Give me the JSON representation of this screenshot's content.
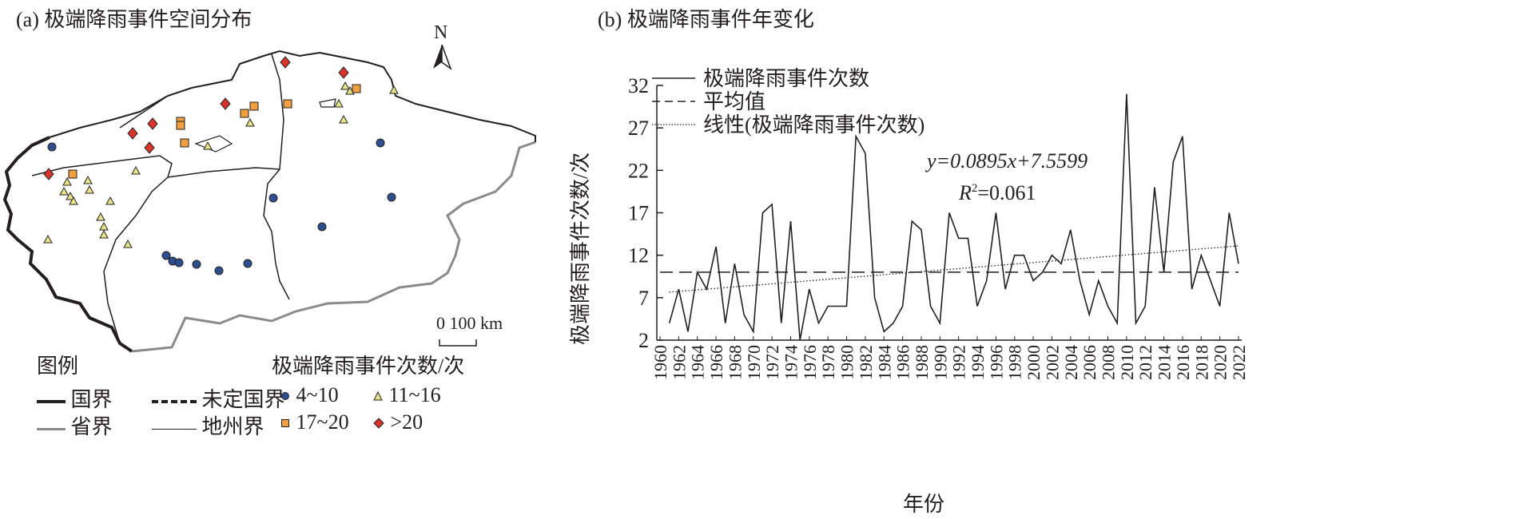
{
  "map_panel": {
    "title": "(a) 极端降雨事件空间分布",
    "north_label": "N",
    "scale_label": "0 100 km",
    "legend": {
      "title": "图例",
      "lines": [
        {
          "label": "国界",
          "style": "solid-thick"
        },
        {
          "label": "未定国界",
          "style": "dashed"
        },
        {
          "label": "省界",
          "style": "gray"
        },
        {
          "label": "地州界",
          "style": "thin"
        }
      ],
      "points_title": "极端降雨事件次数/次",
      "points": [
        {
          "label": "4~10",
          "shape": "circle",
          "color": "#2e4f8f"
        },
        {
          "label": "11~16",
          "shape": "triangle",
          "color": "#e8e48a"
        },
        {
          "label": "17~20",
          "shape": "square",
          "color": "#f0a040"
        },
        {
          "label": ">20",
          "shape": "diamond",
          "color": "#d9342b"
        }
      ]
    }
  },
  "chart_data": {
    "type": "line",
    "title": "(b) 极端降雨事件年变化",
    "xlabel": "年份",
    "ylabel": "极端降雨事件次数/次",
    "ylim": [
      2,
      32
    ],
    "yticks": [
      "2",
      "7",
      "12",
      "17",
      "22",
      "27",
      "32"
    ],
    "xticks": [
      "1960",
      "1962",
      "1964",
      "1966",
      "1968",
      "1970",
      "1972",
      "1974",
      "1976",
      "1978",
      "1980",
      "1982",
      "1984",
      "1986",
      "1988",
      "1990",
      "1992",
      "1994",
      "1996",
      "1998",
      "2000",
      "2002",
      "2004",
      "2006",
      "2008",
      "2010",
      "2012",
      "2014",
      "2016",
      "2018",
      "2020",
      "2022"
    ],
    "xlim": [
      1960,
      2022
    ],
    "series": [
      {
        "name": "极端降雨事件次数",
        "style": "solid",
        "x_start": 1961,
        "values": [
          4,
          8,
          3,
          10,
          8,
          13,
          4,
          11,
          5,
          3,
          17,
          18,
          4,
          16,
          2,
          8,
          4,
          6,
          6,
          6,
          26,
          24,
          7,
          3,
          4,
          6,
          16,
          15,
          6,
          4,
          17,
          14,
          14,
          6,
          9,
          17,
          8,
          12,
          12,
          9,
          10,
          12,
          11,
          15,
          9,
          5,
          9,
          6,
          4,
          31,
          4,
          6,
          20,
          10,
          23,
          26,
          8,
          12,
          9,
          6,
          17,
          11
        ]
      },
      {
        "name": "平均值",
        "style": "dashed",
        "value": 10
      },
      {
        "name": "线性(极端降雨事件次数)",
        "style": "dotted",
        "slope": 0.0895,
        "intercept": 7.5599
      }
    ],
    "equation": "y=0.0895x+7.5599",
    "r2_label": "R",
    "r2_sup": "2",
    "r2_value": "=0.061",
    "legend_position": "top-left"
  }
}
